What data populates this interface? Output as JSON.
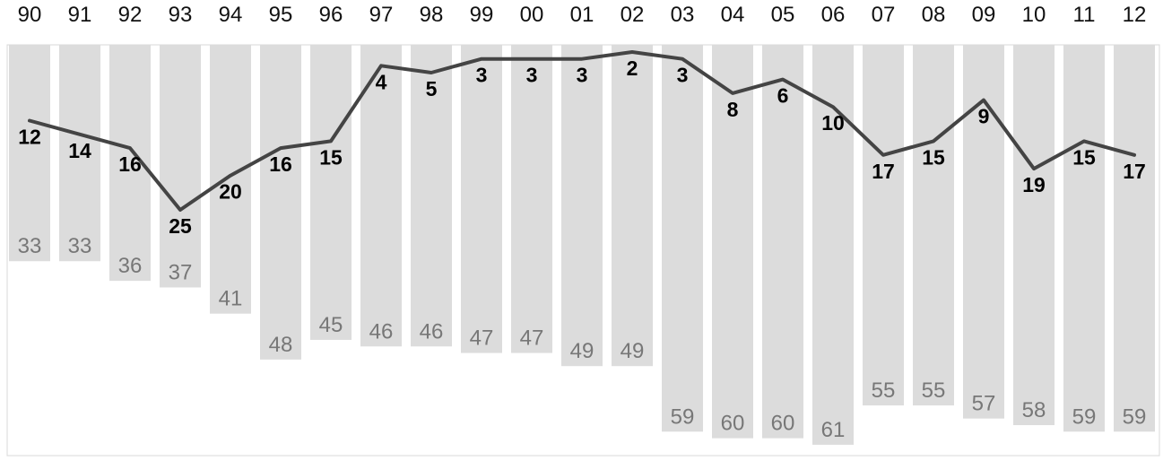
{
  "chart_data": {
    "type": "bar",
    "title": "",
    "xlabel": "",
    "ylabel": "",
    "categories": [
      "90",
      "91",
      "92",
      "93",
      "94",
      "95",
      "96",
      "97",
      "98",
      "99",
      "00",
      "01",
      "02",
      "03",
      "04",
      "05",
      "06",
      "07",
      "08",
      "09",
      "10",
      "11",
      "12"
    ],
    "bar_axis_range": [
      0,
      61
    ],
    "line_axis_range": [
      2,
      25
    ],
    "bar_color": "#dcdcdc",
    "bar_label_color": "#777777",
    "line_color": "#444444",
    "line_label_color": "#000000",
    "legend": "none",
    "grid": false,
    "series": [
      {
        "type": "bar",
        "values": [
          33,
          33,
          36,
          37,
          41,
          48,
          45,
          46,
          46,
          47,
          47,
          49,
          49,
          59,
          60,
          60,
          61,
          55,
          55,
          57,
          58,
          59,
          59
        ]
      },
      {
        "type": "line",
        "values": [
          12,
          14,
          16,
          25,
          20,
          16,
          15,
          4,
          5,
          3,
          3,
          3,
          2,
          3,
          8,
          6,
          10,
          17,
          15,
          9,
          19,
          15,
          17
        ]
      }
    ]
  }
}
